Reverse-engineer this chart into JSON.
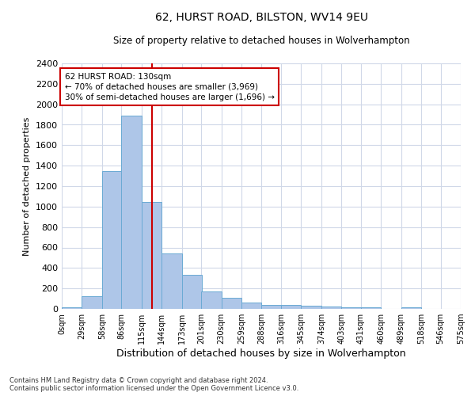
{
  "title1": "62, HURST ROAD, BILSTON, WV14 9EU",
  "title2": "Size of property relative to detached houses in Wolverhampton",
  "xlabel": "Distribution of detached houses by size in Wolverhampton",
  "ylabel": "Number of detached properties",
  "bin_labels": [
    "0sqm",
    "29sqm",
    "58sqm",
    "86sqm",
    "115sqm",
    "144sqm",
    "173sqm",
    "201sqm",
    "230sqm",
    "259sqm",
    "288sqm",
    "316sqm",
    "345sqm",
    "374sqm",
    "403sqm",
    "431sqm",
    "460sqm",
    "489sqm",
    "518sqm",
    "546sqm",
    "575sqm"
  ],
  "bin_edges": [
    0,
    29,
    58,
    86,
    115,
    144,
    173,
    201,
    230,
    259,
    288,
    316,
    345,
    374,
    403,
    431,
    460,
    489,
    518,
    546,
    575
  ],
  "bar_values": [
    15,
    125,
    1345,
    1890,
    1045,
    540,
    335,
    170,
    110,
    65,
    40,
    35,
    28,
    20,
    18,
    15,
    0,
    12,
    0,
    0,
    15
  ],
  "property_size": 130,
  "bar_color": "#aec6e8",
  "bar_edgecolor": "#6aaad4",
  "line_color": "#cc0000",
  "annotation_line1": "62 HURST ROAD: 130sqm",
  "annotation_line2": "← 70% of detached houses are smaller (3,969)",
  "annotation_line3": "30% of semi-detached houses are larger (1,696) →",
  "annotation_box_edgecolor": "#cc0000",
  "ylim": [
    0,
    2400
  ],
  "yticks": [
    0,
    200,
    400,
    600,
    800,
    1000,
    1200,
    1400,
    1600,
    1800,
    2000,
    2200,
    2400
  ],
  "footer1": "Contains HM Land Registry data © Crown copyright and database right 2024.",
  "footer2": "Contains public sector information licensed under the Open Government Licence v3.0.",
  "bg_color": "#ffffff",
  "grid_color": "#d0d8e8"
}
